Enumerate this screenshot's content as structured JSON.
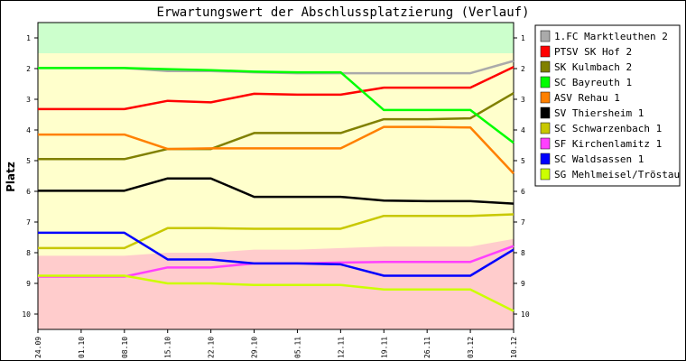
{
  "chart_data": {
    "type": "line",
    "title": "Erwartungswert der Abschlussplatzierung (Verlauf)",
    "ylabel": "Platz",
    "xlabel": "",
    "ylim": [
      10.5,
      0.5
    ],
    "yticks": [
      "1",
      "2",
      "3",
      "4",
      "5",
      "6",
      "7",
      "8",
      "9",
      "10"
    ],
    "x": [
      "24.09",
      "01.10",
      "08.10",
      "15.10",
      "22.10",
      "29.10",
      "05.11",
      "12.11",
      "19.11",
      "26.11",
      "03.12",
      "10.12"
    ],
    "zones": [
      {
        "name": "promotion",
        "color": "#ccffcc",
        "bound": [
          1.5,
          1.5,
          1.5,
          1.5,
          1.5,
          1.5,
          1.5,
          1.5,
          1.5,
          1.5,
          1.5,
          1.5
        ]
      },
      {
        "name": "relegation",
        "color": "#ffcccc",
        "bound": [
          8.1,
          8.1,
          8.1,
          8.0,
          8.0,
          7.9,
          7.9,
          7.85,
          7.8,
          7.8,
          7.8,
          7.55
        ]
      }
    ],
    "middle_zone_color": "#ffffcc",
    "legend_position": "right",
    "series": [
      {
        "name": "1.FC Marktleuthen 2",
        "color": "#aaaaaa",
        "values": [
          1.98,
          1.98,
          1.98,
          2.08,
          2.08,
          2.12,
          2.15,
          2.15,
          2.15,
          2.15,
          2.15,
          1.75
        ]
      },
      {
        "name": "PTSV SK Hof 2",
        "color": "#ff0000",
        "values": [
          3.32,
          3.32,
          3.32,
          3.05,
          3.1,
          2.82,
          2.85,
          2.85,
          2.62,
          2.62,
          2.62,
          1.95
        ]
      },
      {
        "name": "SK Kulmbach 2",
        "color": "#808000",
        "values": [
          4.95,
          4.95,
          4.95,
          4.62,
          4.62,
          4.1,
          4.1,
          4.1,
          3.65,
          3.65,
          3.62,
          2.8
        ]
      },
      {
        "name": "SC Bayreuth 1",
        "color": "#00ff00",
        "values": [
          1.98,
          1.98,
          1.98,
          2.02,
          2.05,
          2.1,
          2.12,
          2.12,
          3.35,
          3.35,
          3.35,
          4.42
        ]
      },
      {
        "name": "ASV Rehau 1",
        "color": "#ff8000",
        "values": [
          4.15,
          4.15,
          4.15,
          4.62,
          4.6,
          4.6,
          4.6,
          4.6,
          3.9,
          3.9,
          3.92,
          5.42
        ]
      },
      {
        "name": "SV Thiersheim 1",
        "color": "#000000",
        "values": [
          5.98,
          5.98,
          5.98,
          5.58,
          5.58,
          6.18,
          6.18,
          6.18,
          6.3,
          6.32,
          6.32,
          6.4
        ]
      },
      {
        "name": "SC Schwarzenbach 1",
        "color": "#c8c800",
        "values": [
          7.85,
          7.85,
          7.85,
          7.2,
          7.2,
          7.22,
          7.22,
          7.22,
          6.8,
          6.8,
          6.8,
          6.75
        ]
      },
      {
        "name": "SF Kirchenlamitz 1",
        "color": "#ff40ff",
        "values": [
          8.78,
          8.78,
          8.78,
          8.48,
          8.48,
          8.35,
          8.35,
          8.32,
          8.3,
          8.3,
          8.3,
          7.78
        ]
      },
      {
        "name": "SC Waldsassen 1",
        "color": "#0000ff",
        "values": [
          7.35,
          7.35,
          7.35,
          8.22,
          8.22,
          8.35,
          8.35,
          8.38,
          8.75,
          8.75,
          8.75,
          7.9
        ]
      },
      {
        "name": "SG Mehlmeisel/Tröstau 1",
        "color": "#ccff00",
        "values": [
          8.75,
          8.75,
          8.75,
          9.0,
          9.0,
          9.05,
          9.05,
          9.05,
          9.2,
          9.2,
          9.2,
          9.9
        ]
      }
    ]
  }
}
